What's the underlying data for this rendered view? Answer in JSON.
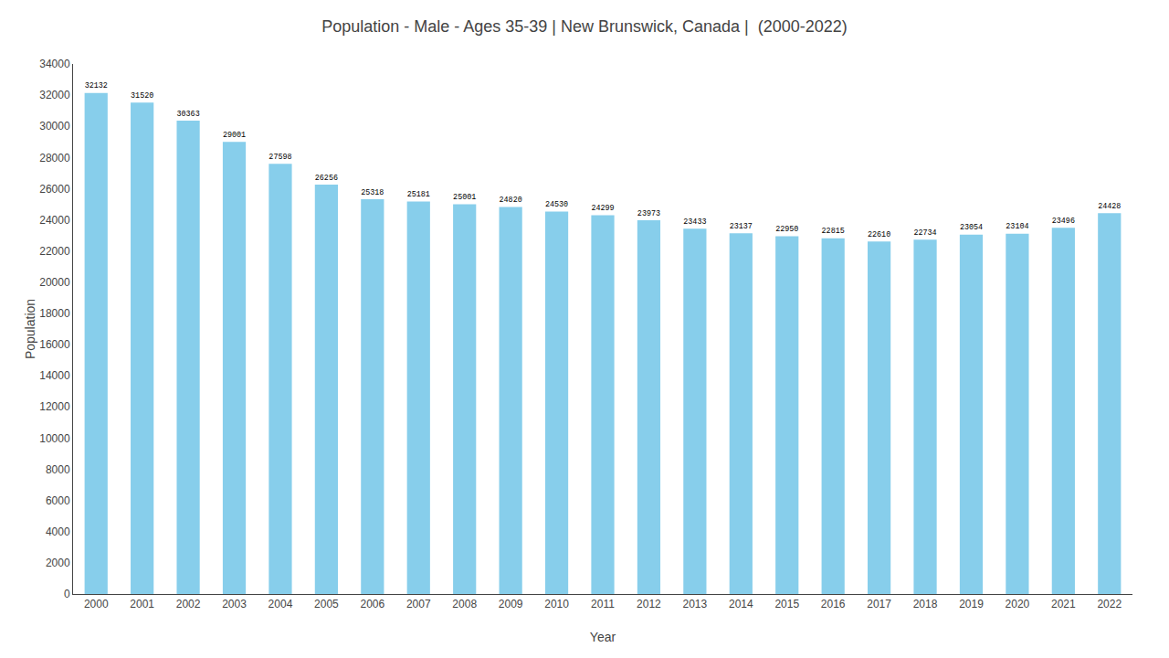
{
  "chart_data": {
    "type": "bar",
    "title": "Population - Male - Ages 35-39 | New Brunswick, Canada |  (2000-2022)",
    "x_label": "Year",
    "y_label": "Population",
    "categories": [
      "2000",
      "2001",
      "2002",
      "2003",
      "2004",
      "2005",
      "2006",
      "2007",
      "2008",
      "2009",
      "2010",
      "2011",
      "2012",
      "2013",
      "2014",
      "2015",
      "2016",
      "2017",
      "2018",
      "2019",
      "2020",
      "2021",
      "2022"
    ],
    "values": [
      32132,
      31520,
      30363,
      29001,
      27598,
      26256,
      25318,
      25181,
      25001,
      24820,
      24530,
      24299,
      23973,
      23433,
      23137,
      22950,
      22815,
      22610,
      22734,
      23054,
      23104,
      23496,
      24428
    ],
    "color": "#87ceeb",
    "ylim": [
      0,
      34000
    ],
    "yticks": [
      0,
      2000,
      4000,
      6000,
      8000,
      10000,
      12000,
      14000,
      16000,
      18000,
      20000,
      22000,
      24000,
      26000,
      28000,
      30000,
      32000,
      34000
    ],
    "grid": false,
    "data_labels": true
  }
}
